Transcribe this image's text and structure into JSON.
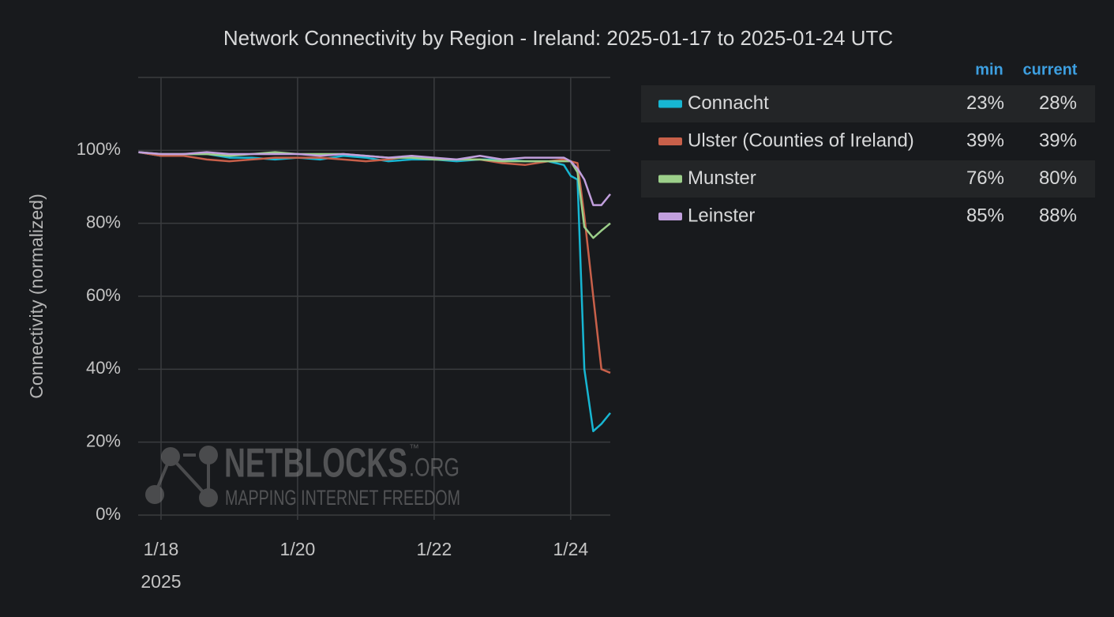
{
  "chart_data": {
    "type": "line",
    "title": "Network Connectivity by Region - Ireland: 2025-01-17 to 2025-01-24 UTC",
    "y_label": "Connectivity (normalized)",
    "x_year_label": "2025",
    "x": [
      17.67,
      18.0,
      18.33,
      18.67,
      19.0,
      19.33,
      19.67,
      20.0,
      20.33,
      20.67,
      21.0,
      21.33,
      21.67,
      22.0,
      22.33,
      22.67,
      23.0,
      23.33,
      23.67,
      23.9,
      24.0,
      24.1,
      24.2,
      24.33,
      24.45,
      24.58
    ],
    "xlim": [
      17.665,
      24.58
    ],
    "xticks": [
      {
        "value": 18,
        "label": "1/18"
      },
      {
        "value": 20,
        "label": "1/20"
      },
      {
        "value": 22,
        "label": "1/22"
      },
      {
        "value": 24,
        "label": "1/24"
      }
    ],
    "ylim": [
      0,
      120
    ],
    "yticks": [
      {
        "value": 0,
        "label": "0%"
      },
      {
        "value": 20,
        "label": "20%"
      },
      {
        "value": 40,
        "label": "40%"
      },
      {
        "value": 60,
        "label": "60%"
      },
      {
        "value": 80,
        "label": "80%"
      },
      {
        "value": 100,
        "label": "100%"
      }
    ],
    "grid": true,
    "legend_headers": {
      "min": "min",
      "current": "current"
    },
    "series": [
      {
        "name": "Connacht",
        "color": "#17b6d2",
        "values": [
          99.5,
          98.5,
          99,
          99,
          98,
          98,
          97.5,
          98,
          97.5,
          98.5,
          98,
          97,
          97.5,
          97.5,
          97,
          97.5,
          97.5,
          97,
          97,
          96,
          93,
          92,
          40,
          23,
          25,
          28
        ],
        "min": {
          "value": 23,
          "label": "23%"
        },
        "current": {
          "value": 28,
          "label": "28%"
        }
      },
      {
        "name": "Ulster (Counties of Ireland)",
        "color": "#c8604a",
        "values": [
          99.5,
          98.5,
          98.5,
          97.5,
          97,
          97.5,
          98,
          98,
          98,
          97.5,
          97,
          97.5,
          98.5,
          97.5,
          97.5,
          97.5,
          96.5,
          96,
          97,
          97.5,
          97,
          96.5,
          82,
          60,
          40,
          39
        ],
        "min": {
          "value": 39,
          "label": "39%"
        },
        "current": {
          "value": 39,
          "label": "39%"
        }
      },
      {
        "name": "Munster",
        "color": "#9ccf8a",
        "values": [
          99.5,
          99,
          99,
          99,
          98.5,
          99,
          99.5,
          99,
          99,
          99,
          98.5,
          98,
          98,
          97.5,
          97.5,
          97.5,
          97,
          97,
          97,
          97,
          97,
          94,
          79,
          76,
          78,
          80
        ],
        "min": {
          "value": 76,
          "label": "76%"
        },
        "current": {
          "value": 80,
          "label": "80%"
        }
      },
      {
        "name": "Leinster",
        "color": "#c19fdd",
        "values": [
          99.5,
          99,
          99,
          99.5,
          99,
          99,
          99,
          99,
          98.5,
          99,
          98.5,
          98,
          98.5,
          98,
          97.5,
          98.5,
          97.5,
          98,
          98,
          98,
          97,
          95,
          92,
          85,
          85,
          88
        ],
        "min": {
          "value": 85,
          "label": "85%"
        },
        "current": {
          "value": 88,
          "label": "88%"
        }
      }
    ],
    "watermark": {
      "brand": "NETBLOCKS",
      "trademark": "™",
      "tld": ".ORG",
      "tagline": "MAPPING INTERNET FREEDOM"
    }
  }
}
